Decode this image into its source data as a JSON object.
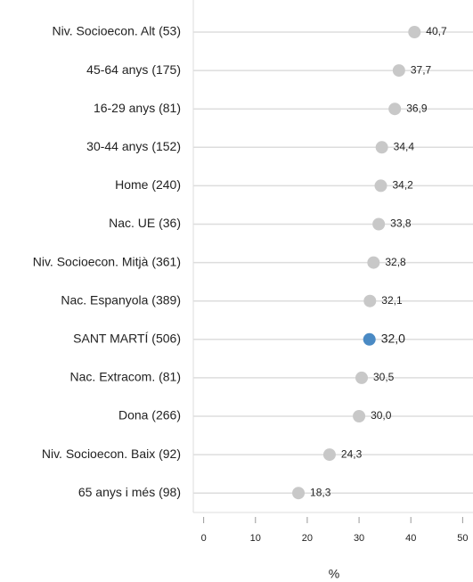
{
  "chart_data": {
    "type": "dot",
    "categories": [
      "Niv. Socioecon. Alt (53)",
      "45-64 anys (175)",
      "16-29 anys (81)",
      "30-44 anys (152)",
      "Home (240)",
      "Nac. UE (36)",
      "Niv. Socioecon. Mitjà (361)",
      "Nac. Espanyola (389)",
      "SANT MARTÍ (506)",
      "Nac. Extracom. (81)",
      "Dona (266)",
      "Niv. Socioecon. Baix (92)",
      "65 anys i més (98)"
    ],
    "values": [
      40.7,
      37.7,
      36.9,
      34.4,
      34.2,
      33.8,
      32.8,
      32.1,
      32.0,
      30.5,
      30.0,
      24.3,
      18.3
    ],
    "value_labels": [
      "40,7",
      "37,7",
      "36,9",
      "34,4",
      "34,2",
      "33,8",
      "32,8",
      "32,1",
      "32,0",
      "30,5",
      "30,0",
      "24,3",
      "18,3"
    ],
    "color": "#c8c8c8",
    "highlight_index": 8,
    "highlight_color": "#4a8ac4",
    "xlabel": "%",
    "xlim": [
      -2,
      52
    ],
    "xticks": [
      0,
      10,
      20,
      30,
      40,
      50
    ],
    "grid": true
  }
}
